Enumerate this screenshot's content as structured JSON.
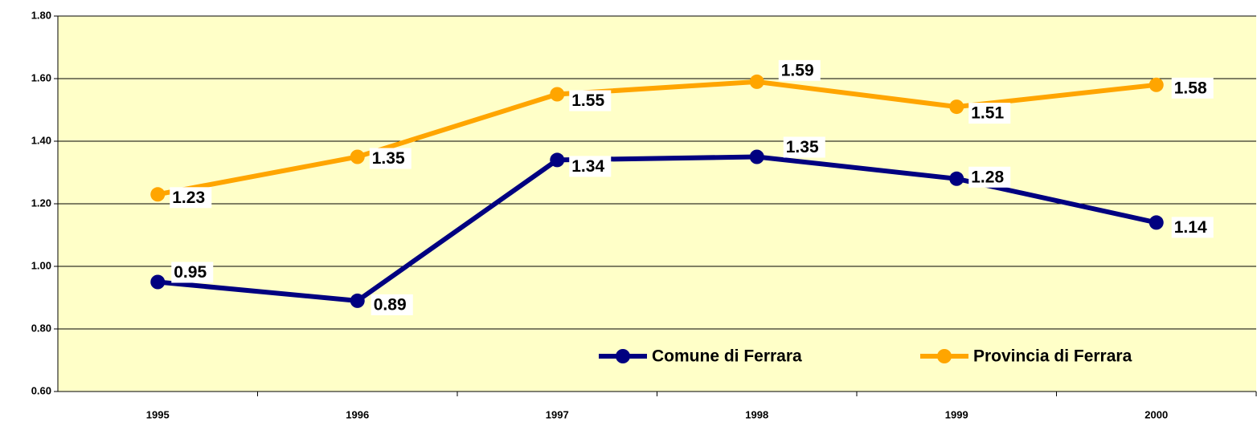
{
  "chart_data": {
    "type": "line",
    "categories": [
      "1995",
      "1996",
      "1997",
      "1998",
      "1999",
      "2000"
    ],
    "series": [
      {
        "name": "Comune di Ferrara",
        "color": "#000080",
        "values": [
          0.95,
          0.89,
          1.34,
          1.35,
          1.28,
          1.14
        ]
      },
      {
        "name": "Provincia di Ferrara",
        "color": "#FFA500",
        "values": [
          1.23,
          1.35,
          1.55,
          1.59,
          1.51,
          1.58
        ]
      }
    ],
    "ylim": [
      0.6,
      1.8
    ],
    "yticks": [
      {
        "value": 0.6,
        "label": "0.60"
      },
      {
        "value": 0.8,
        "label": "0.80"
      },
      {
        "value": 1.0,
        "label": "1.00"
      },
      {
        "value": 1.2,
        "label": "1.20"
      },
      {
        "value": 1.4,
        "label": "1.40"
      },
      {
        "value": 1.6,
        "label": "1.60"
      },
      {
        "value": 1.8,
        "label": "1.80"
      }
    ],
    "grid": true,
    "legend": "bottom"
  }
}
